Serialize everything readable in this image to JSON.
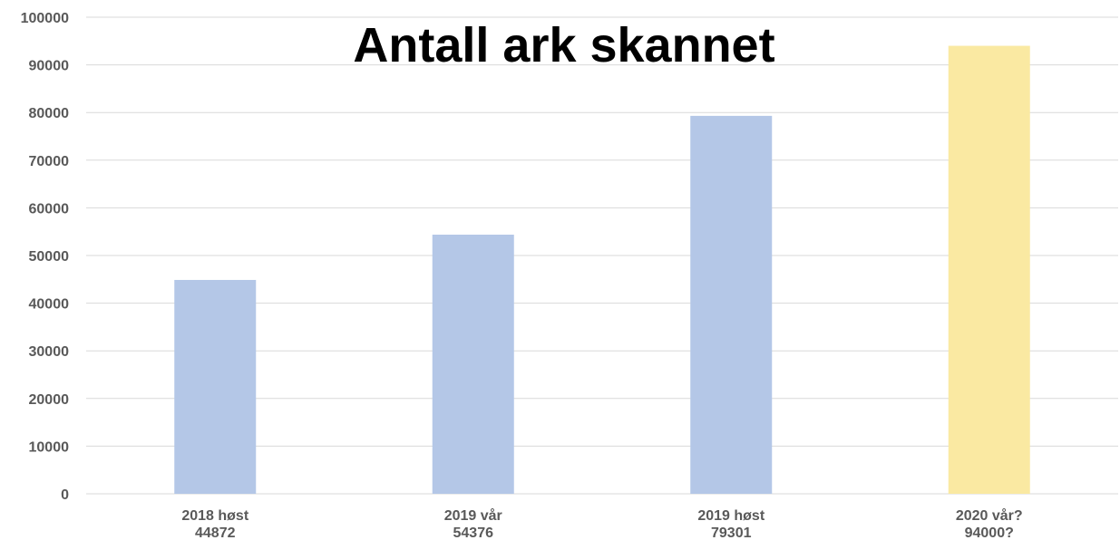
{
  "chart_data": {
    "type": "bar",
    "title": "Antall ark skannet",
    "categories": [
      {
        "line1": "2018 høst",
        "line2": "44872"
      },
      {
        "line1": "2019 vår",
        "line2": "54376"
      },
      {
        "line1": "2019 høst",
        "line2": "79301"
      },
      {
        "line1": "2020 vår?",
        "line2": "94000?"
      }
    ],
    "values": [
      44872,
      54376,
      79301,
      94000
    ],
    "bar_colors": [
      "#b4c7e7",
      "#b4c7e7",
      "#b4c7e7",
      "#fae9a2"
    ],
    "ylim": [
      0,
      100000
    ],
    "yticks": [
      0,
      10000,
      20000,
      30000,
      40000,
      50000,
      60000,
      70000,
      80000,
      90000,
      100000
    ],
    "xlabel": "",
    "ylabel": "",
    "grid": true,
    "legend": "none"
  }
}
